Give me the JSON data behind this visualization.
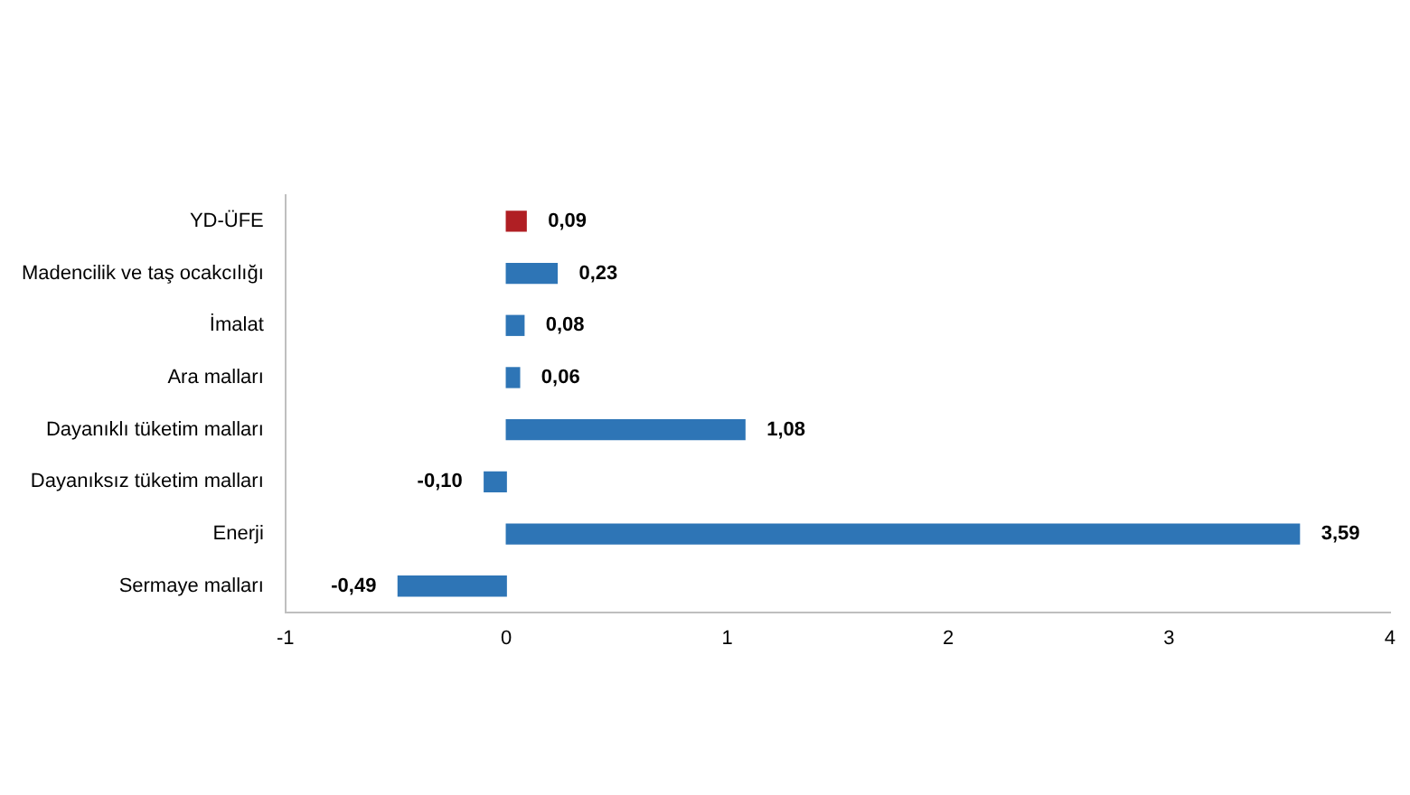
{
  "chart_data": {
    "type": "bar",
    "orientation": "horizontal",
    "categories": [
      "YD-ÜFE",
      "Madencilik ve taş ocakcılığı",
      "İmalat",
      "Ara malları",
      "Dayanıklı tüketim malları",
      "Dayanıksız tüketim malları",
      "Enerji",
      "Sermaye malları"
    ],
    "values": [
      0.09,
      0.23,
      0.08,
      0.06,
      1.08,
      -0.1,
      3.59,
      -0.49
    ],
    "colors": [
      "#b01f24",
      "#2e75b6",
      "#2e75b6",
      "#2e75b6",
      "#2e75b6",
      "#2e75b6",
      "#2e75b6",
      "#2e75b6"
    ],
    "value_labels": [
      "0,09",
      "0,23",
      "0,08",
      "0,06",
      "1,08",
      "-0,10",
      "3,59",
      "-0,49"
    ],
    "xlim": [
      -1,
      4
    ],
    "xticks": [
      -1,
      0,
      1,
      2,
      3,
      4
    ],
    "grid": false,
    "legend": false
  }
}
